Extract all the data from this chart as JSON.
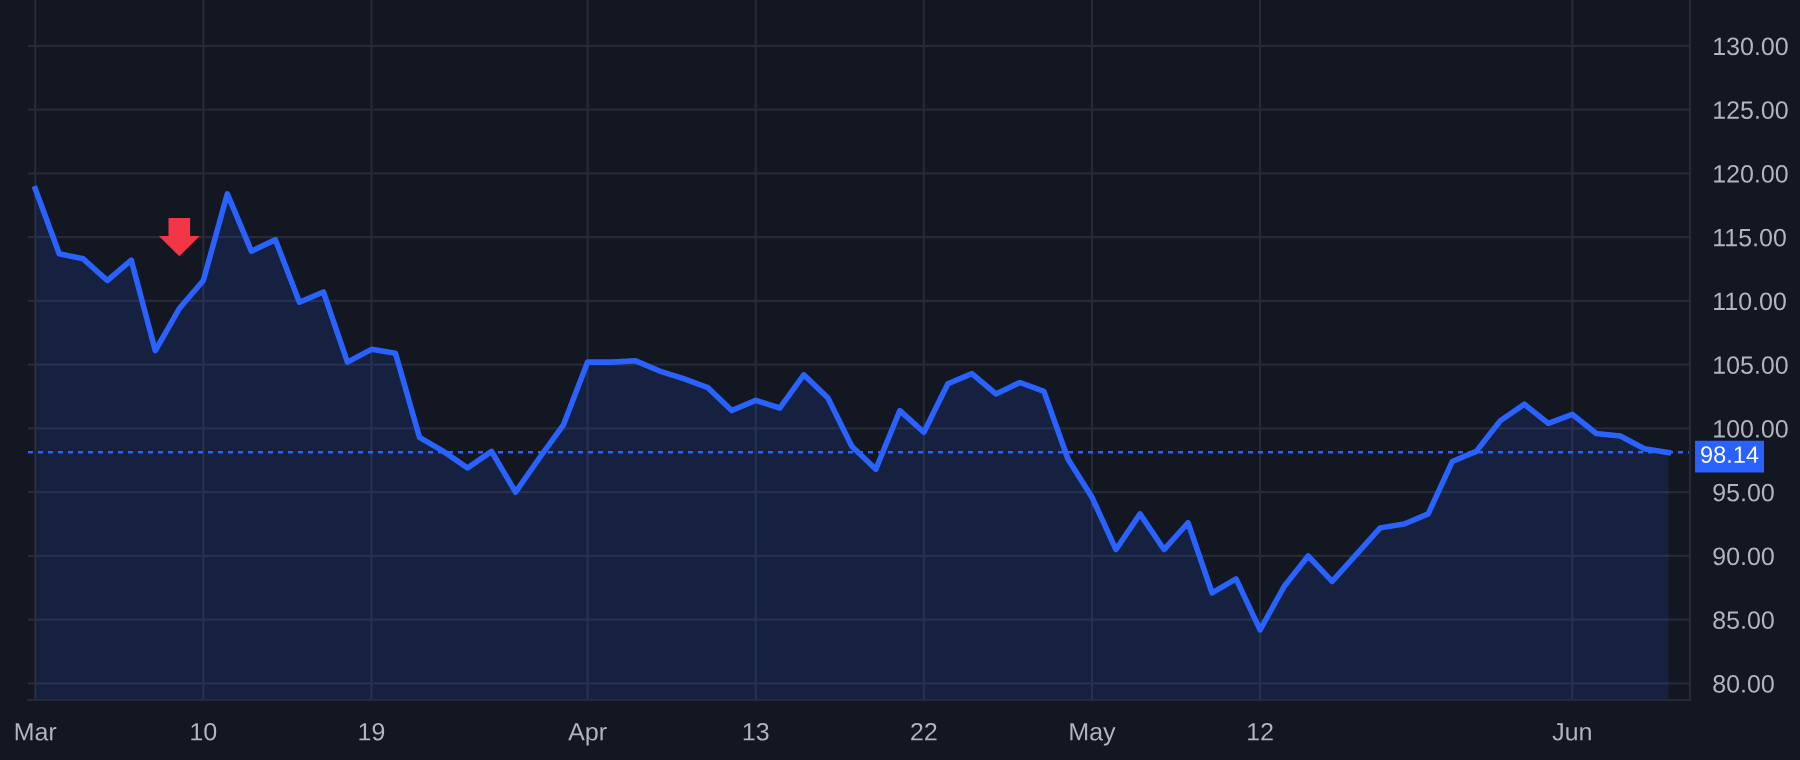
{
  "chart_data": {
    "type": "area",
    "categories": [
      "Mar",
      null,
      null,
      null,
      null,
      null,
      null,
      "10",
      null,
      null,
      null,
      null,
      null,
      null,
      "19",
      null,
      null,
      null,
      null,
      null,
      null,
      null,
      null,
      "Apr",
      null,
      null,
      null,
      null,
      null,
      null,
      "13",
      null,
      null,
      null,
      null,
      null,
      null,
      "22",
      null,
      null,
      null,
      null,
      null,
      null,
      "May",
      null,
      null,
      null,
      null,
      null,
      null,
      "12",
      null,
      null,
      null,
      null,
      null,
      null,
      null,
      null,
      null,
      null,
      null,
      null,
      "Jun",
      null,
      null,
      null,
      null
    ],
    "series": [
      {
        "color": "#2962ff",
        "values": [
          118.8,
          113.7,
          113.3,
          111.6,
          113.2,
          106.1,
          109.4,
          111.6,
          118.4,
          113.9,
          114.8,
          109.9,
          110.7,
          105.2,
          106.2,
          105.9,
          99.3,
          98.2,
          96.9,
          98.2,
          95.0,
          97.7,
          100.3,
          105.2,
          105.2,
          105.3,
          104.5,
          103.9,
          103.2,
          101.4,
          102.2,
          101.6,
          104.2,
          102.4,
          98.6,
          96.8,
          101.4,
          99.7,
          103.5,
          104.3,
          102.7,
          103.6,
          102.9,
          97.6,
          94.6,
          90.5,
          93.3,
          90.5,
          92.6,
          87.1,
          88.2,
          84.2,
          87.6,
          90.0,
          88.0,
          90.1,
          92.2,
          92.5,
          93.3,
          97.4,
          98.2,
          100.6,
          101.9,
          100.4,
          101.1,
          99.6,
          99.4,
          98.4,
          98.1
        ]
      }
    ],
    "ylim": [
      78.7,
      133.6
    ],
    "yticks": [
      {
        "value": 80,
        "label": "80.00"
      },
      {
        "value": 85,
        "label": "85.00"
      },
      {
        "value": 90,
        "label": "90.00"
      },
      {
        "value": 95,
        "label": "95.00"
      },
      {
        "value": 100,
        "label": "100.00"
      },
      {
        "value": 105,
        "label": "105.00"
      },
      {
        "value": 110,
        "label": "110.00"
      },
      {
        "value": 115,
        "label": "115.00"
      },
      {
        "value": 120,
        "label": "120.00"
      },
      {
        "value": 125,
        "label": "125.00"
      },
      {
        "value": 130,
        "label": "130.00"
      }
    ],
    "ref_lines": [
      {
        "axis": "y",
        "value": 98.14,
        "label": "98.14",
        "color": "#2962ff",
        "line_style": "dotted"
      }
    ],
    "grid": true,
    "legend": false
  }
}
